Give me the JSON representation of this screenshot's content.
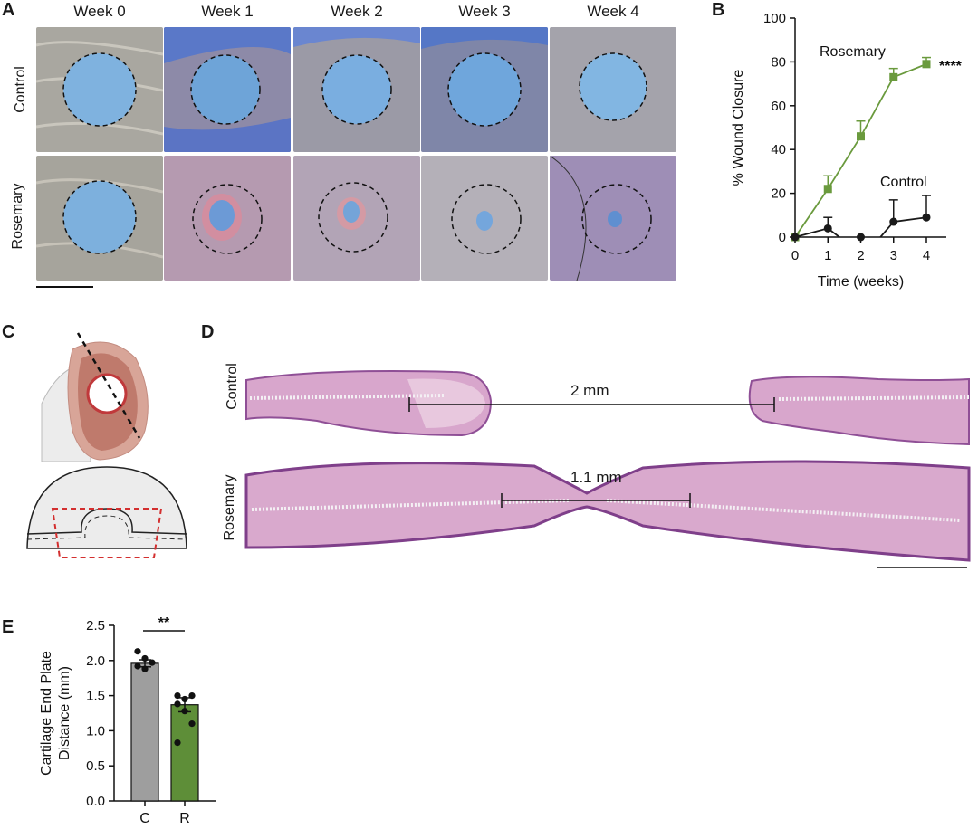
{
  "panel_labels": {
    "a": "A",
    "b": "B",
    "c": "C",
    "d": "D",
    "e": "E"
  },
  "panel_a": {
    "week_headers": [
      "Week 0",
      "Week 1",
      "Week 2",
      "Week 3",
      "Week 4"
    ],
    "rows": [
      "Control",
      "Rosemary"
    ]
  },
  "panel_d": {
    "row_labels": [
      "Control",
      "Rosemary"
    ],
    "measurements": [
      "2 mm",
      "1.1 mm"
    ]
  },
  "colors": {
    "control": "#1a1a1a",
    "rosemary": "#6a9a3d",
    "bar_control": "#9e9e9e",
    "bar_rosemary": "#5e8e38"
  },
  "chart_data": [
    {
      "panel": "B",
      "type": "line",
      "xlabel": "Time (weeks)",
      "ylabel": "% Wound Closure",
      "x": [
        0,
        1,
        2,
        3,
        4
      ],
      "xlim": [
        0,
        4
      ],
      "ylim": [
        0,
        100
      ],
      "yticks": [
        0,
        20,
        40,
        60,
        80,
        100
      ],
      "series": [
        {
          "name": "Rosemary",
          "values": [
            0,
            22,
            46,
            73,
            79
          ],
          "errors": [
            0,
            6,
            7,
            4,
            3
          ],
          "marker": "square"
        },
        {
          "name": "Control",
          "values": [
            0,
            4,
            0,
            7,
            9
          ],
          "errors": [
            0,
            5,
            0,
            10,
            10
          ],
          "marker": "circle"
        }
      ],
      "annotation": "****"
    },
    {
      "panel": "E",
      "type": "bar",
      "categories": [
        "C",
        "R"
      ],
      "values": [
        1.96,
        1.37
      ],
      "errors": [
        0.05,
        0.1
      ],
      "points": [
        [
          2.13,
          2.03,
          1.97,
          1.92,
          1.88
        ],
        [
          1.5,
          1.45,
          1.5,
          1.38,
          1.28,
          1.1,
          0.83
        ]
      ],
      "ylabel": "Cartilage End Plate Distance (mm)",
      "ylim": [
        0,
        2.5
      ],
      "yticks": [
        "0.0",
        "0.5",
        "1.0",
        "1.5",
        "2.0",
        "2.5"
      ],
      "annotation": "**"
    }
  ]
}
